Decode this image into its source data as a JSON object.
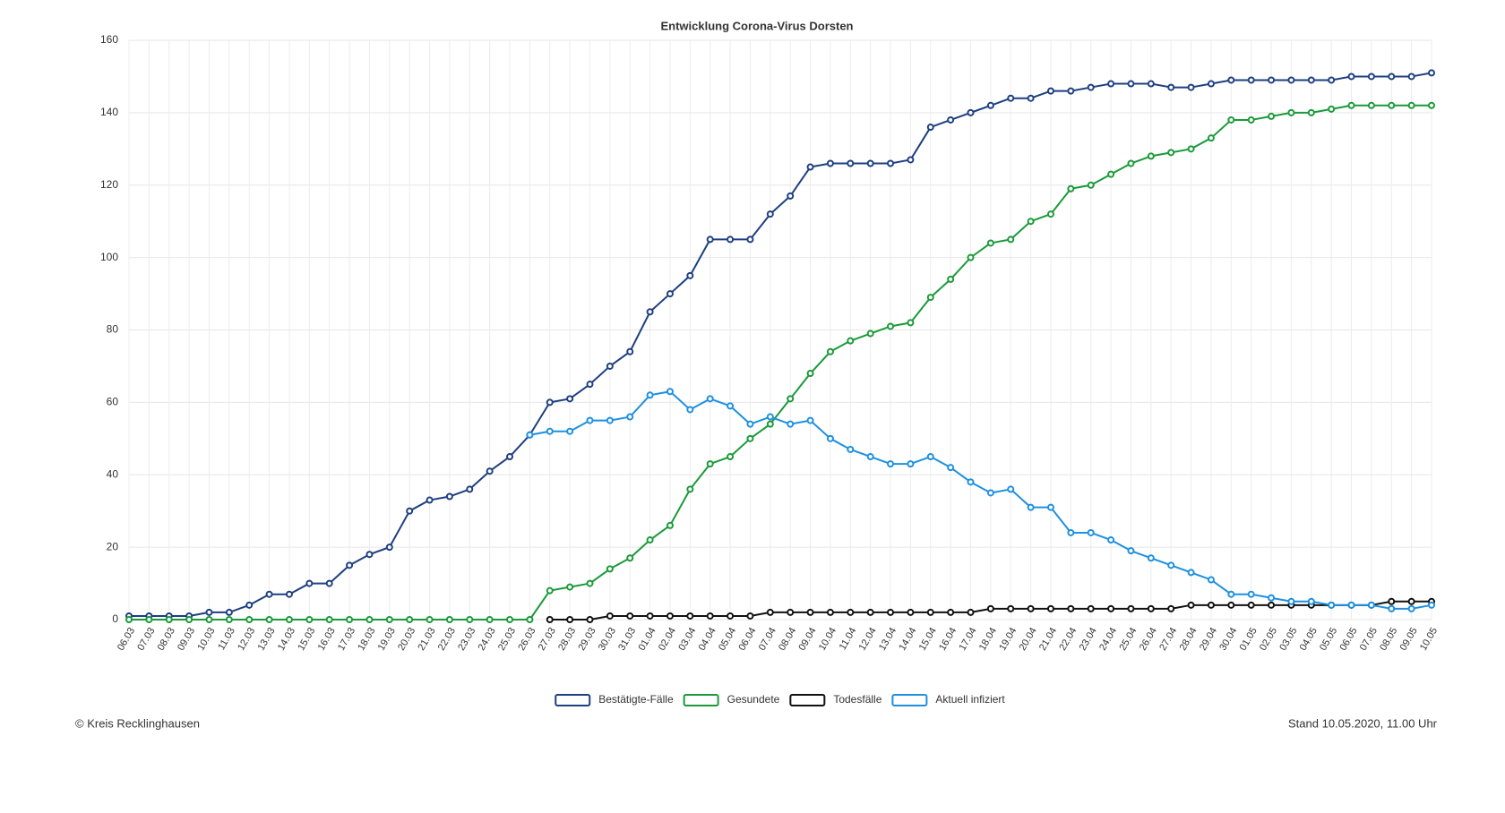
{
  "chart_data": {
    "type": "line",
    "title": "Entwicklung Corona-Virus Dorsten",
    "categories": [
      "06.03",
      "07.03",
      "08.03",
      "09.03",
      "10.03",
      "11.03",
      "12.03",
      "13.03",
      "14.03",
      "15.03",
      "16.03",
      "17.03",
      "18.03",
      "19.03",
      "20.03",
      "21.03",
      "22.03",
      "23.03",
      "24.03",
      "25.03",
      "26.03",
      "27.03",
      "28.03",
      "29.03",
      "30.03",
      "31.03",
      "01.04",
      "02.04",
      "03.04",
      "04.04",
      "05.04",
      "06.04",
      "07.04",
      "08.04",
      "09.04",
      "10.04",
      "11.04",
      "12.04",
      "13.04",
      "14.04",
      "15.04",
      "16.04",
      "17.04",
      "18.04",
      "19.04",
      "20.04",
      "21.04",
      "22.04",
      "23.04",
      "24.04",
      "25.04",
      "26.04",
      "27.04",
      "28.04",
      "29.04",
      "30.04",
      "01.05",
      "02.05",
      "03.05",
      "04.05",
      "05.05",
      "06.05",
      "07.05",
      "08.05",
      "09.05",
      "10.05"
    ],
    "series": [
      {
        "name": "Bestätigte-Fälle",
        "color": "#1e3f80",
        "values": [
          1,
          1,
          1,
          1,
          2,
          2,
          4,
          7,
          7,
          10,
          10,
          15,
          18,
          20,
          30,
          33,
          34,
          36,
          41,
          45,
          51,
          60,
          61,
          65,
          70,
          74,
          85,
          90,
          95,
          105,
          105,
          105,
          112,
          117,
          125,
          126,
          126,
          126,
          126,
          127,
          136,
          138,
          140,
          142,
          144,
          144,
          146,
          146,
          147,
          148,
          148,
          148,
          147,
          147,
          148,
          149,
          149,
          149,
          149,
          149,
          149,
          150,
          150,
          150,
          150,
          151
        ]
      },
      {
        "name": "Gesundete",
        "color": "#1a9a3a",
        "values": [
          0,
          0,
          0,
          0,
          0,
          0,
          0,
          0,
          0,
          0,
          0,
          0,
          0,
          0,
          0,
          0,
          0,
          0,
          0,
          0,
          0,
          8,
          9,
          10,
          14,
          17,
          22,
          26,
          36,
          43,
          45,
          50,
          54,
          61,
          68,
          74,
          77,
          79,
          81,
          82,
          89,
          94,
          100,
          104,
          105,
          110,
          112,
          119,
          120,
          123,
          126,
          128,
          129,
          130,
          133,
          138,
          138,
          139,
          140,
          140,
          141,
          142,
          142,
          142,
          142,
          142
        ]
      },
      {
        "name": "Todesfälle",
        "color": "#111111",
        "values": [
          null,
          null,
          null,
          null,
          null,
          null,
          null,
          null,
          null,
          null,
          null,
          null,
          null,
          null,
          null,
          null,
          null,
          null,
          null,
          null,
          null,
          0,
          0,
          0,
          1,
          1,
          1,
          1,
          1,
          1,
          1,
          1,
          2,
          2,
          2,
          2,
          2,
          2,
          2,
          2,
          2,
          2,
          2,
          3,
          3,
          3,
          3,
          3,
          3,
          3,
          3,
          3,
          3,
          4,
          4,
          4,
          4,
          4,
          4,
          4,
          4,
          4,
          4,
          5,
          5,
          5
        ]
      },
      {
        "name": "Aktuell infiziert",
        "color": "#1e90e0",
        "values": [
          null,
          null,
          null,
          null,
          null,
          null,
          null,
          null,
          null,
          null,
          null,
          null,
          null,
          null,
          null,
          null,
          null,
          null,
          null,
          null,
          51,
          52,
          52,
          55,
          55,
          56,
          62,
          63,
          58,
          61,
          59,
          54,
          56,
          54,
          55,
          50,
          47,
          45,
          43,
          43,
          45,
          42,
          38,
          35,
          36,
          31,
          31,
          24,
          24,
          22,
          19,
          17,
          15,
          13,
          11,
          7,
          7,
          6,
          5,
          5,
          4,
          4,
          4,
          3,
          3,
          4
        ]
      }
    ],
    "ylim": [
      0,
      160
    ],
    "yticks": [
      0,
      20,
      40,
      60,
      80,
      100,
      120,
      140,
      160
    ],
    "grid": true,
    "legend": "bottom",
    "source": "© Kreis Recklinghausen",
    "note": "Stand 10.05.2020, 11.00 Uhr"
  }
}
